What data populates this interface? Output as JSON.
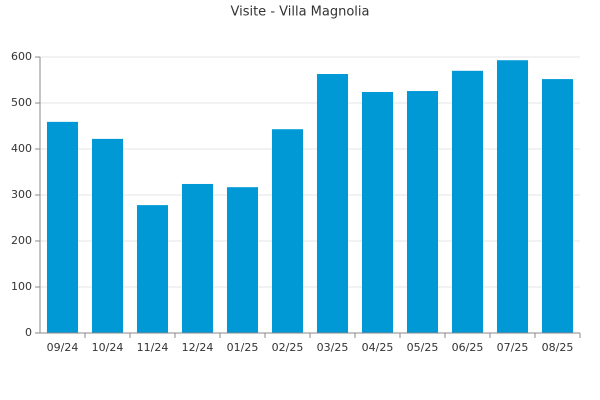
{
  "chart_data": {
    "type": "bar",
    "title": "Visite - Villa Magnolia",
    "categories": [
      "09/24",
      "10/24",
      "11/24",
      "12/24",
      "01/25",
      "02/25",
      "03/25",
      "04/25",
      "05/25",
      "06/25",
      "07/25",
      "08/25"
    ],
    "values": [
      459,
      422,
      278,
      324,
      317,
      443,
      563,
      524,
      526,
      570,
      593,
      552
    ],
    "color": "#0099d6",
    "ylim": [
      0,
      600
    ],
    "yticks": [
      0,
      100,
      200,
      300,
      400,
      500,
      600
    ],
    "grid": true
  }
}
